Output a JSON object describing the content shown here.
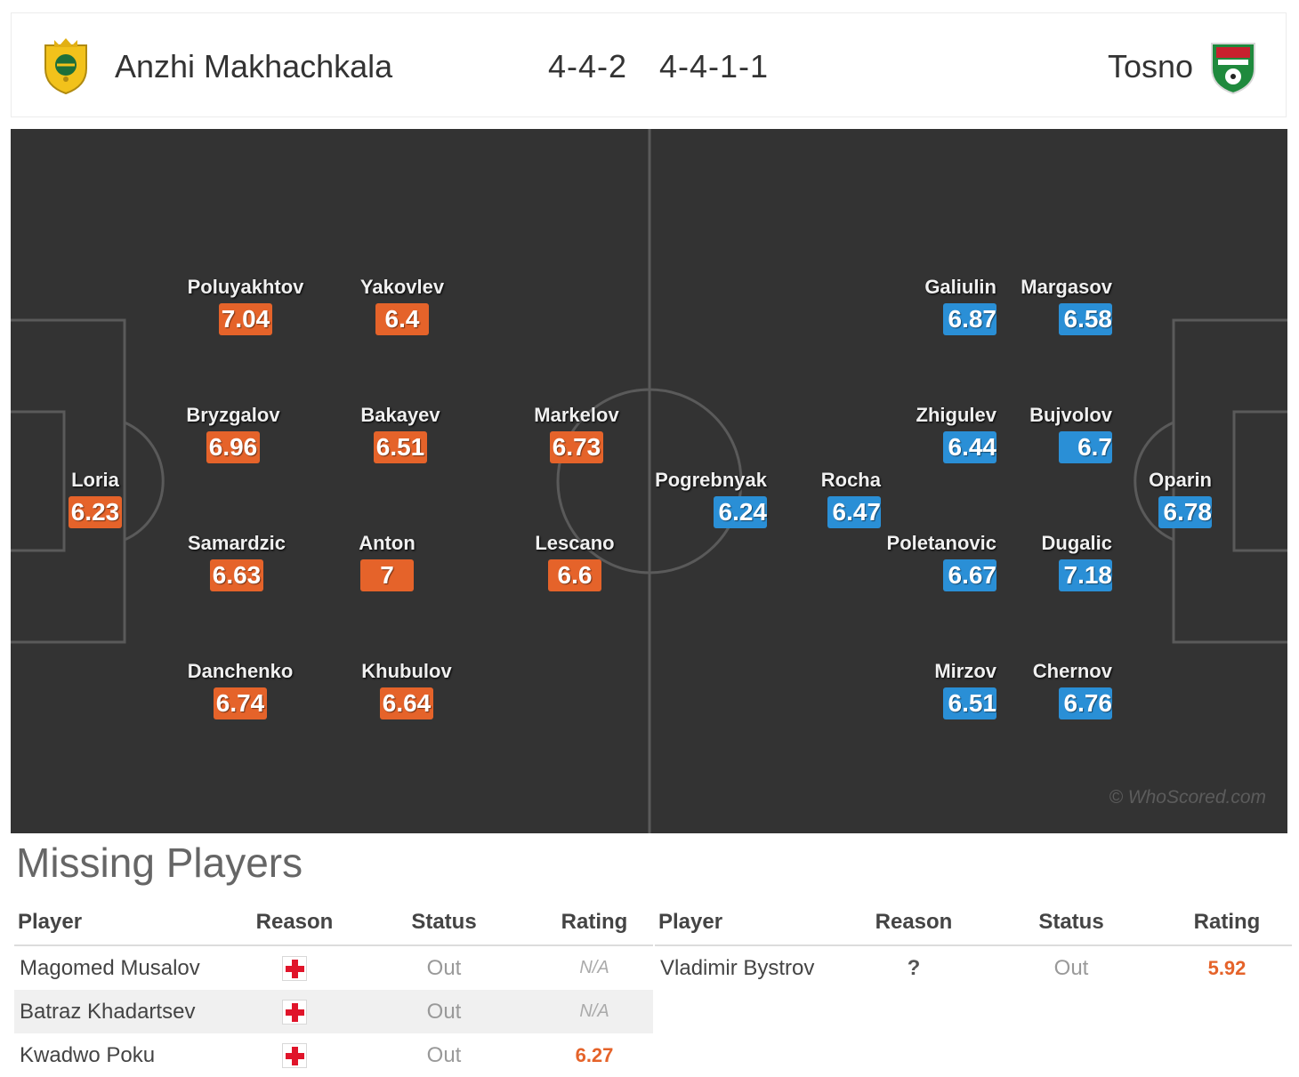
{
  "header": {
    "home": {
      "name": "Anzhi Makhachkala",
      "formation": "4-4-2",
      "crest": "anzhi-crest-icon"
    },
    "away": {
      "name": "Tosno",
      "formation": "4-4-1-1",
      "crest": "tosno-crest-icon"
    }
  },
  "colors": {
    "home_rating": "#e5632a",
    "away_rating": "#2a8fd6",
    "pitch": "#333333"
  },
  "pitch": {
    "watermark": "© WhoScored.com",
    "home_players": [
      {
        "name": "Loria",
        "rating": "6.23"
      },
      {
        "name": "Poluyakhtov",
        "rating": "7.04"
      },
      {
        "name": "Bryzgalov",
        "rating": "6.96"
      },
      {
        "name": "Samardzic",
        "rating": "6.63"
      },
      {
        "name": "Danchenko",
        "rating": "6.74"
      },
      {
        "name": "Yakovlev",
        "rating": "6.4"
      },
      {
        "name": "Bakayev",
        "rating": "6.51"
      },
      {
        "name": "Anton",
        "rating": "7"
      },
      {
        "name": "Khubulov",
        "rating": "6.64"
      },
      {
        "name": "Markelov",
        "rating": "6.73"
      },
      {
        "name": "Lescano",
        "rating": "6.6"
      }
    ],
    "away_players": [
      {
        "name": "Pogrebnyak",
        "rating": "6.24"
      },
      {
        "name": "Rocha",
        "rating": "6.47"
      },
      {
        "name": "Galiulin",
        "rating": "6.87"
      },
      {
        "name": "Zhigulev",
        "rating": "6.44"
      },
      {
        "name": "Poletanovic",
        "rating": "6.67"
      },
      {
        "name": "Mirzov",
        "rating": "6.51"
      },
      {
        "name": "Margasov",
        "rating": "6.58"
      },
      {
        "name": "Bujvolov",
        "rating": "6.7"
      },
      {
        "name": "Dugalic",
        "rating": "7.18"
      },
      {
        "name": "Chernov",
        "rating": "6.76"
      },
      {
        "name": "Oparin",
        "rating": "6.78"
      }
    ]
  },
  "missing": {
    "title": "Missing Players",
    "headers": {
      "player": "Player",
      "reason": "Reason",
      "status": "Status",
      "rating": "Rating"
    },
    "home": [
      {
        "player": "Magomed Musalov",
        "reason": "injury-icon",
        "status": "Out",
        "rating": "N/A"
      },
      {
        "player": "Batraz Khadartsev",
        "reason": "injury-icon",
        "status": "Out",
        "rating": "N/A"
      },
      {
        "player": "Kwadwo Poku",
        "reason": "injury-icon",
        "status": "Out",
        "rating": "6.27"
      }
    ],
    "away": [
      {
        "player": "Vladimir Bystrov",
        "reason": "?",
        "status": "Out",
        "rating": "5.92"
      }
    ]
  }
}
